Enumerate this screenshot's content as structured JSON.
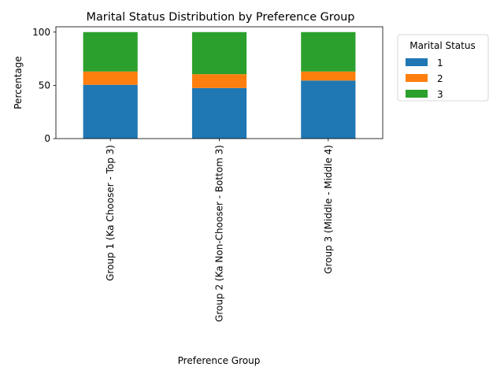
{
  "chart_data": {
    "type": "bar",
    "stacked": true,
    "title": "Marital Status Distribution by Preference Group",
    "xlabel": "Preference Group",
    "ylabel": "Percentage",
    "ylim": [
      0,
      105
    ],
    "yticks": [
      0,
      50,
      100
    ],
    "grid": false,
    "categories": [
      "Group 1 (Ka Chooser - Top 3)",
      "Group 2 (Ka Non-Chooser - Bottom 3)",
      "Group 3 (Middle - Middle 4)"
    ],
    "series": [
      {
        "name": "1",
        "color": "#1f77b4",
        "values": [
          50.5,
          47.5,
          54.5
        ]
      },
      {
        "name": "2",
        "color": "#ff7f0e",
        "values": [
          12.5,
          13.0,
          8.5
        ]
      },
      {
        "name": "3",
        "color": "#2ca02c",
        "values": [
          37.0,
          39.5,
          37.0
        ]
      }
    ],
    "legend": {
      "title": "Marital Status",
      "placement": "outside-upper-right"
    }
  }
}
